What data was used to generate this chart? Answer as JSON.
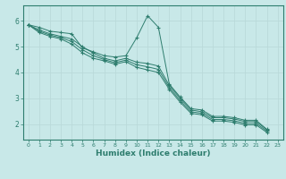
{
  "xlabel": "Humidex (Indice chaleur)",
  "bg_color": "#c8e8e8",
  "line_color": "#2e7d6e",
  "grid_color": "#b8d8d8",
  "xlim": [
    -0.5,
    23.5
  ],
  "ylim": [
    1.4,
    6.6
  ],
  "yticks": [
    2,
    3,
    4,
    5,
    6
  ],
  "xticks": [
    0,
    1,
    2,
    3,
    4,
    5,
    6,
    7,
    8,
    9,
    10,
    11,
    12,
    13,
    14,
    15,
    16,
    17,
    18,
    19,
    20,
    21,
    22,
    23
  ],
  "series": [
    [
      5.85,
      5.75,
      5.6,
      5.55,
      5.5,
      4.95,
      4.8,
      4.65,
      4.6,
      4.65,
      5.35,
      6.2,
      5.75,
      3.55,
      3.05,
      2.6,
      2.55,
      2.3,
      2.3,
      2.25,
      2.15,
      2.15,
      1.8
    ],
    [
      5.85,
      5.65,
      5.5,
      5.4,
      5.3,
      5.0,
      4.75,
      4.55,
      4.45,
      4.55,
      4.4,
      4.35,
      4.25,
      3.5,
      3.0,
      2.55,
      2.48,
      2.25,
      2.25,
      2.2,
      2.1,
      2.1,
      1.78
    ],
    [
      5.85,
      5.6,
      5.45,
      5.35,
      5.2,
      4.88,
      4.65,
      4.5,
      4.38,
      4.48,
      4.3,
      4.22,
      4.12,
      3.42,
      2.92,
      2.48,
      2.42,
      2.18,
      2.18,
      2.13,
      2.03,
      2.03,
      1.73
    ],
    [
      5.85,
      5.55,
      5.4,
      5.3,
      5.1,
      4.76,
      4.55,
      4.45,
      4.32,
      4.42,
      4.2,
      4.1,
      4.0,
      3.35,
      2.85,
      2.42,
      2.36,
      2.12,
      2.12,
      2.07,
      1.97,
      1.97,
      1.68
    ]
  ]
}
